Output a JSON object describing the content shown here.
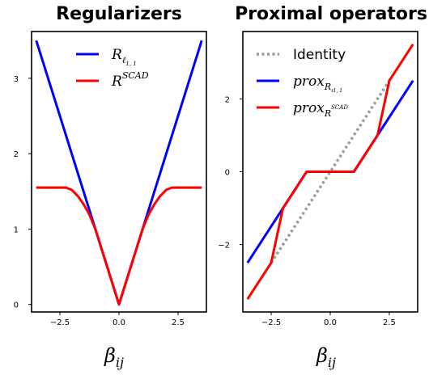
{
  "chart_data": [
    {
      "type": "line",
      "title": "Regularizers",
      "xlabel": "β",
      "xlabel_sub": "ij",
      "xlim": [
        -3.7,
        3.7
      ],
      "ylim": [
        -0.1,
        3.62
      ],
      "xticks": [
        -2.5,
        0.0,
        2.5
      ],
      "xtick_labels": [
        "−2.5",
        "0.0",
        "2.5"
      ],
      "yticks": [
        0,
        1,
        2,
        3
      ],
      "ytick_labels": [
        "0",
        "1",
        "2",
        "3"
      ],
      "legend_position": "top-center",
      "series": [
        {
          "name_main": "R",
          "name_sub": "ℓ",
          "name_subsub": "1, 1",
          "name_sup": "",
          "color": "#0000ff",
          "x": [
            -3.5,
            0,
            3.5
          ],
          "y": [
            3.5,
            0,
            3.5
          ]
        },
        {
          "name_main": "R",
          "name_sub": "",
          "name_subsub": "",
          "name_sup": "SCAD",
          "color": "#ff0000",
          "x": [
            -3.5,
            -2.25,
            -2,
            -1.75,
            -1.5,
            -1.25,
            -1,
            -0.5,
            0,
            0.5,
            1,
            1.25,
            1.5,
            1.75,
            2,
            2.25,
            3.5
          ],
          "y": [
            1.55,
            1.55,
            1.52,
            1.44,
            1.33,
            1.19,
            1.0,
            0.5,
            0,
            0.5,
            1.0,
            1.19,
            1.33,
            1.44,
            1.52,
            1.55,
            1.55
          ]
        }
      ]
    },
    {
      "type": "line",
      "title": "Proximal operators",
      "xlabel": "β",
      "xlabel_sub": "ij",
      "xlim": [
        -3.7,
        3.7
      ],
      "ylim": [
        -3.85,
        3.85
      ],
      "xticks": [
        -2.5,
        0.0,
        2.5
      ],
      "xtick_labels": [
        "−2.5",
        "0.0",
        "2.5"
      ],
      "yticks": [
        -2,
        0,
        2
      ],
      "ytick_labels": [
        "−2",
        "0",
        "2"
      ],
      "legend_position": "top-left",
      "series": [
        {
          "name": "Identity",
          "color": "#999999",
          "dashed": true,
          "x": [
            -2.5,
            2.5
          ],
          "y": [
            -2.5,
            2.5
          ]
        },
        {
          "name_main": "prox",
          "name_sub": "R",
          "name_subsub": "ℓ1, 1",
          "name_sup": "",
          "color": "#0000ff",
          "x": [
            -3.5,
            -1,
            1,
            3.5
          ],
          "y": [
            -2.5,
            0,
            0,
            2.5
          ]
        },
        {
          "name_main": "prox",
          "name_sub": "R",
          "name_subsub": "SCAD",
          "name_sup": "",
          "color": "#ff0000",
          "x": [
            -3.5,
            -2.5,
            -2,
            -1,
            1,
            2,
            2.5,
            3.5
          ],
          "y": [
            -3.5,
            -2.5,
            -1,
            0,
            0,
            1,
            2.5,
            3.5
          ]
        }
      ]
    }
  ]
}
